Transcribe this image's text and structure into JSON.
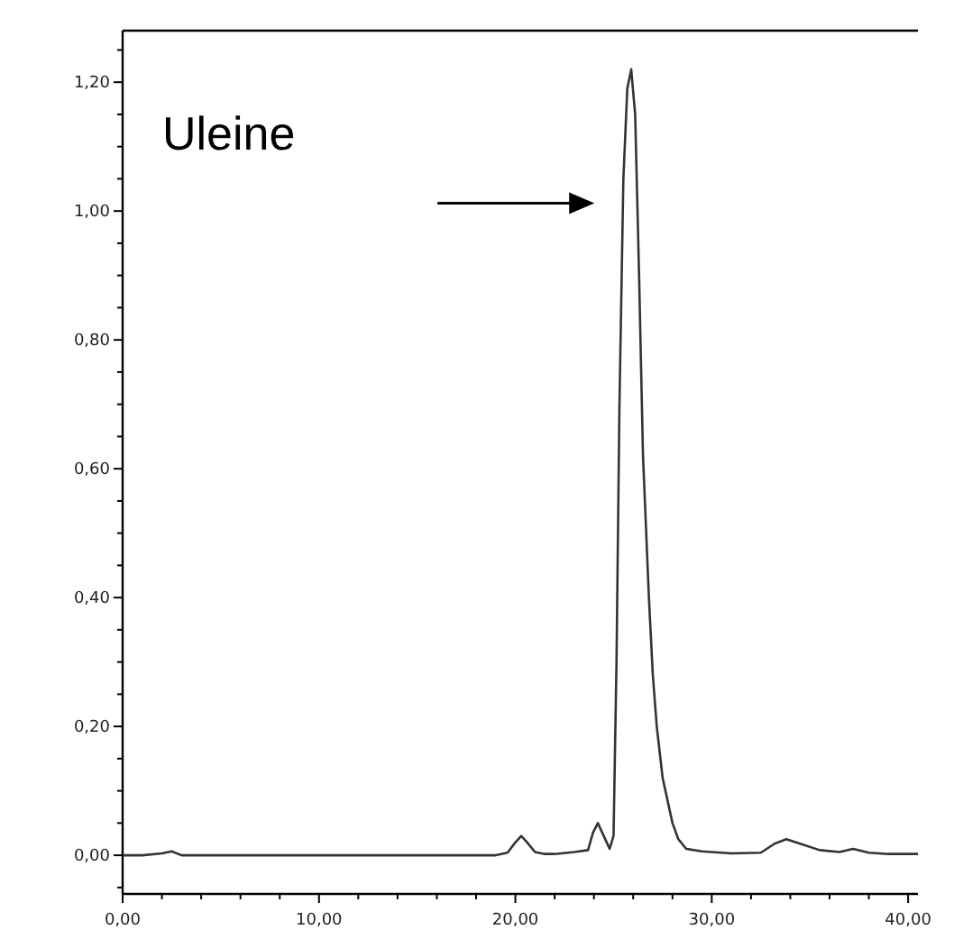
{
  "chart_data": {
    "type": "line",
    "x": [
      0,
      1,
      2,
      2.5,
      3,
      5,
      10,
      15,
      19,
      19.6,
      20,
      20.3,
      20.6,
      21,
      21.5,
      22,
      23,
      23.7,
      23.95,
      24.2,
      24.5,
      24.8,
      25,
      25.15,
      25.3,
      25.5,
      25.7,
      25.9,
      26.1,
      26.3,
      26.5,
      26.8,
      27,
      27.2,
      27.5,
      28,
      28.3,
      28.7,
      29.5,
      31,
      32.5,
      33.2,
      33.8,
      34.5,
      35.5,
      36.5,
      37.2,
      38,
      39,
      40.5
    ],
    "values": [
      0,
      0,
      0.003,
      0.006,
      0,
      0,
      0,
      0,
      0,
      0.004,
      0.02,
      0.03,
      0.02,
      0.005,
      0.002,
      0.002,
      0.005,
      0.008,
      0.035,
      0.05,
      0.03,
      0.01,
      0.03,
      0.3,
      0.7,
      1.05,
      1.19,
      1.22,
      1.15,
      0.9,
      0.62,
      0.4,
      0.28,
      0.2,
      0.12,
      0.05,
      0.025,
      0.01,
      0.006,
      0.003,
      0.004,
      0.018,
      0.025,
      0.018,
      0.008,
      0.005,
      0.01,
      0.004,
      0.002,
      0.002
    ],
    "color": "#333333",
    "marker": "none",
    "line_style": "solid",
    "grid": false,
    "xlim": [
      0,
      40.5
    ],
    "ylim": [
      -0.06,
      1.28
    ],
    "xticks": [
      {
        "value": 0,
        "label": "0,00"
      },
      {
        "value": 2,
        "label": null
      },
      {
        "value": 4,
        "label": null
      },
      {
        "value": 6,
        "label": null
      },
      {
        "value": 8,
        "label": null
      },
      {
        "value": 10,
        "label": "10,00"
      },
      {
        "value": 12,
        "label": null
      },
      {
        "value": 14,
        "label": null
      },
      {
        "value": 16,
        "label": null
      },
      {
        "value": 18,
        "label": null
      },
      {
        "value": 20,
        "label": "20,00"
      },
      {
        "value": 22,
        "label": null
      },
      {
        "value": 24,
        "label": null
      },
      {
        "value": 26,
        "label": null
      },
      {
        "value": 28,
        "label": null
      },
      {
        "value": 30,
        "label": "30,00"
      },
      {
        "value": 32,
        "label": null
      },
      {
        "value": 34,
        "label": null
      },
      {
        "value": 36,
        "label": null
      },
      {
        "value": 38,
        "label": null
      },
      {
        "value": 40,
        "label": "40,00"
      }
    ],
    "yticks": [
      {
        "value": -0.05,
        "label": null
      },
      {
        "value": 0,
        "label": "0,00"
      },
      {
        "value": 0.05,
        "label": null
      },
      {
        "value": 0.1,
        "label": null
      },
      {
        "value": 0.15,
        "label": null
      },
      {
        "value": 0.2,
        "label": "0,20"
      },
      {
        "value": 0.25,
        "label": null
      },
      {
        "value": 0.3,
        "label": null
      },
      {
        "value": 0.35,
        "label": null
      },
      {
        "value": 0.4,
        "label": "0,40"
      },
      {
        "value": 0.45,
        "label": null
      },
      {
        "value": 0.5,
        "label": null
      },
      {
        "value": 0.55,
        "label": null
      },
      {
        "value": 0.6,
        "label": "0,60"
      },
      {
        "value": 0.65,
        "label": null
      },
      {
        "value": 0.7,
        "label": null
      },
      {
        "value": 0.75,
        "label": null
      },
      {
        "value": 0.8,
        "label": "0,80"
      },
      {
        "value": 0.85,
        "label": null
      },
      {
        "value": 0.9,
        "label": null
      },
      {
        "value": 0.95,
        "label": null
      },
      {
        "value": 1,
        "label": "1,00"
      },
      {
        "value": 1.05,
        "label": null
      },
      {
        "value": 1.1,
        "label": null
      },
      {
        "value": 1.15,
        "label": null
      },
      {
        "value": 1.2,
        "label": "1,20"
      },
      {
        "value": 1.25,
        "label": null
      }
    ],
    "annotations": [
      "Uleine"
    ]
  }
}
